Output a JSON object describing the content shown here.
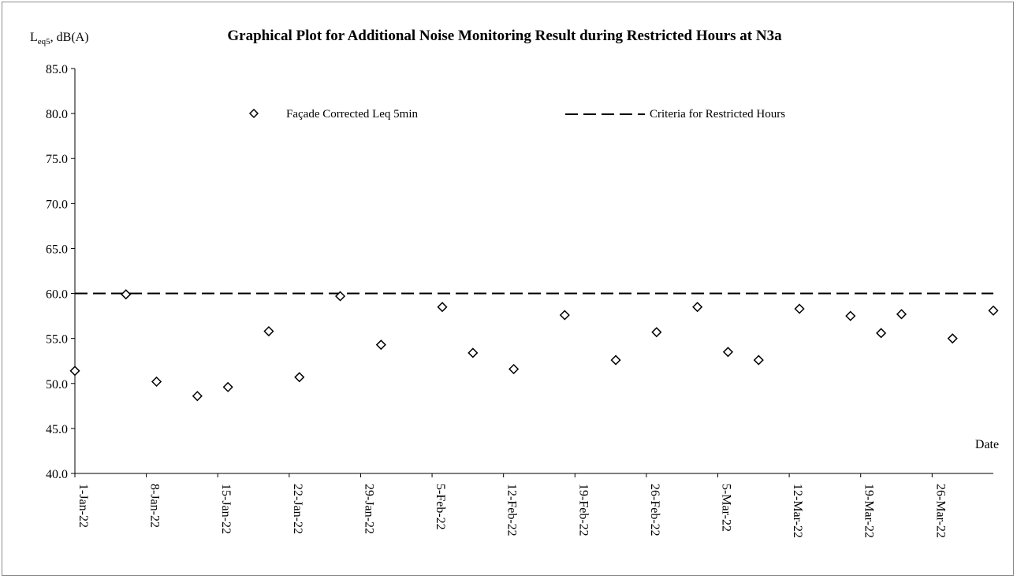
{
  "chart_data": {
    "type": "scatter",
    "title": "Graphical Plot for Additional Noise Monitoring Result during Restricted Hours at N3a",
    "ylabel": {
      "main": "L",
      "subscript": "eq5",
      "suffix": ", dB(A)"
    },
    "xlabel": "Date",
    "ylim": [
      40,
      85
    ],
    "yticks": [
      "40.0",
      "45.0",
      "50.0",
      "55.0",
      "60.0",
      "65.0",
      "70.0",
      "75.0",
      "80.0",
      "85.0"
    ],
    "xlim": [
      "2022-01-01",
      "2022-04-01"
    ],
    "xticks": [
      {
        "date": "2022-01-01",
        "label": "1-Jan-22"
      },
      {
        "date": "2022-01-08",
        "label": "8-Jan-22"
      },
      {
        "date": "2022-01-15",
        "label": "15-Jan-22"
      },
      {
        "date": "2022-01-22",
        "label": "22-Jan-22"
      },
      {
        "date": "2022-01-29",
        "label": "29-Jan-22"
      },
      {
        "date": "2022-02-05",
        "label": "5-Feb-22"
      },
      {
        "date": "2022-02-12",
        "label": "12-Feb-22"
      },
      {
        "date": "2022-02-19",
        "label": "19-Feb-22"
      },
      {
        "date": "2022-02-26",
        "label": "26-Feb-22"
      },
      {
        "date": "2022-03-05",
        "label": "5-Mar-22"
      },
      {
        "date": "2022-03-12",
        "label": "12-Mar-22"
      },
      {
        "date": "2022-03-19",
        "label": "19-Mar-22"
      },
      {
        "date": "2022-03-26",
        "label": "26-Mar-22"
      }
    ],
    "grid": false,
    "legend": {
      "position": "top",
      "entries": [
        "Façade Corrected Leq 5min",
        "Criteria for Restricted Hours"
      ]
    },
    "series": [
      {
        "name": "Façade Corrected Leq 5min",
        "marker": "diamond-open",
        "color": "#000000",
        "points": [
          {
            "x": "2022-01-01",
            "y": 51.4
          },
          {
            "x": "2022-01-06",
            "y": 59.9
          },
          {
            "x": "2022-01-09",
            "y": 50.2
          },
          {
            "x": "2022-01-13",
            "y": 48.6
          },
          {
            "x": "2022-01-16",
            "y": 49.6
          },
          {
            "x": "2022-01-20",
            "y": 55.8
          },
          {
            "x": "2022-01-23",
            "y": 50.7
          },
          {
            "x": "2022-01-27",
            "y": 59.7
          },
          {
            "x": "2022-01-31",
            "y": 54.3
          },
          {
            "x": "2022-02-06",
            "y": 58.5
          },
          {
            "x": "2022-02-09",
            "y": 53.4
          },
          {
            "x": "2022-02-13",
            "y": 51.6
          },
          {
            "x": "2022-02-18",
            "y": 57.6
          },
          {
            "x": "2022-02-23",
            "y": 52.6
          },
          {
            "x": "2022-02-27",
            "y": 55.7
          },
          {
            "x": "2022-03-03",
            "y": 58.5
          },
          {
            "x": "2022-03-06",
            "y": 53.5
          },
          {
            "x": "2022-03-09",
            "y": 52.6
          },
          {
            "x": "2022-03-13",
            "y": 58.3
          },
          {
            "x": "2022-03-18",
            "y": 57.5
          },
          {
            "x": "2022-03-21",
            "y": 55.6
          },
          {
            "x": "2022-03-23",
            "y": 57.7
          },
          {
            "x": "2022-03-28",
            "y": 55.0
          },
          {
            "x": "2022-04-01",
            "y": 58.1
          }
        ]
      },
      {
        "name": "Criteria for Restricted Hours",
        "line_style": "dashed",
        "color": "#000000",
        "value": 60
      }
    ]
  }
}
